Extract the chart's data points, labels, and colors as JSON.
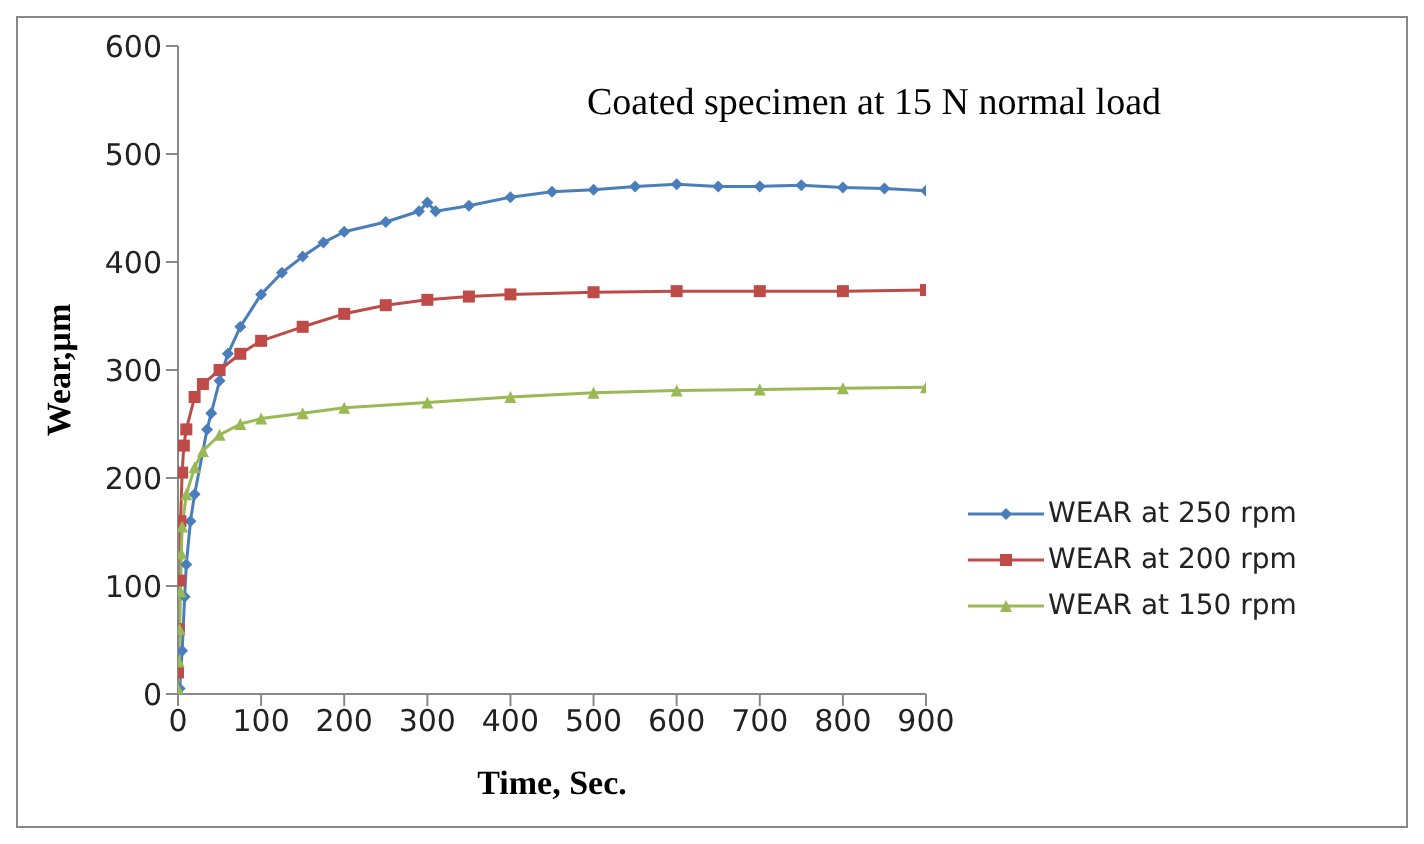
{
  "chart_data": {
    "type": "line",
    "title": "Coated specimen at 15 N normal load",
    "xlabel": "Time, Sec.",
    "ylabel": "Wear,µm",
    "xlim": [
      0,
      900
    ],
    "xticks": [
      0,
      100,
      200,
      300,
      400,
      500,
      600,
      700,
      800,
      900
    ],
    "ylim": [
      0,
      600
    ],
    "yticks": [
      0,
      100,
      200,
      300,
      400,
      500,
      600
    ],
    "grid": false,
    "legend": "right",
    "line_style": "solid",
    "series": [
      {
        "name": "WEAR at 250 rpm",
        "color": "#4a7ebb",
        "marker": "diamond",
        "x": [
          0,
          2,
          5,
          8,
          10,
          15,
          20,
          35,
          40,
          50,
          60,
          75,
          100,
          125,
          150,
          175,
          200,
          250,
          290,
          300,
          310,
          350,
          400,
          450,
          500,
          550,
          600,
          650,
          700,
          750,
          800,
          850,
          900
        ],
        "values": [
          0,
          5,
          40,
          90,
          120,
          160,
          185,
          245,
          260,
          290,
          315,
          340,
          370,
          390,
          405,
          418,
          428,
          437,
          447,
          455,
          447,
          452,
          460,
          465,
          467,
          470,
          472,
          470,
          470,
          471,
          469,
          468,
          466
        ]
      },
      {
        "name": "WEAR at 200 rpm",
        "color": "#be4b48",
        "marker": "square",
        "x": [
          0,
          1,
          2,
          3,
          5,
          7,
          10,
          20,
          30,
          50,
          75,
          100,
          150,
          200,
          250,
          300,
          350,
          400,
          500,
          600,
          700,
          800,
          900
        ],
        "values": [
          20,
          60,
          105,
          160,
          205,
          230,
          245,
          275,
          287,
          300,
          315,
          327,
          340,
          352,
          360,
          365,
          368,
          370,
          372,
          373,
          373,
          373,
          374
        ]
      },
      {
        "name": "WEAR at 150 rpm",
        "color": "#98b954",
        "marker": "triangle",
        "x": [
          0,
          1,
          2,
          3,
          4,
          5,
          10,
          20,
          30,
          50,
          75,
          100,
          150,
          200,
          300,
          400,
          500,
          600,
          700,
          800,
          900
        ],
        "values": [
          5,
          30,
          60,
          95,
          130,
          155,
          185,
          210,
          225,
          240,
          250,
          255,
          260,
          265,
          270,
          275,
          279,
          281,
          282,
          283,
          284
        ]
      }
    ]
  }
}
